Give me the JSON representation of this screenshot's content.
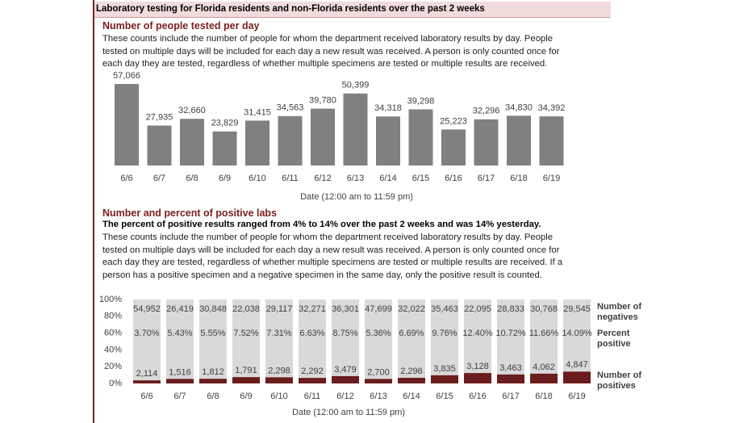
{
  "header": "Laboratory testing for Florida residents and non-Florida residents over the past 2 weeks",
  "chart_data": [
    {
      "type": "bar",
      "title": "Number of people tested per day",
      "subtitle": "These counts include the number of people for whom the department received laboratory results by day. People tested on multiple days will be included for each day a new result was received. A person is only counted once for each day they are tested, regardless of whether multiple specimens are tested or multiple results are received.",
      "xlabel": "Date (12:00 am to 11:59 pm)",
      "categories": [
        "6/6",
        "6/7",
        "6/8",
        "6/9",
        "6/10",
        "6/11",
        "6/12",
        "6/13",
        "6/14",
        "6/15",
        "6/16",
        "6/17",
        "6/18",
        "6/19"
      ],
      "values": [
        57066,
        27935,
        32660,
        23829,
        31415,
        34563,
        39780,
        50399,
        34318,
        39298,
        25223,
        32296,
        34830,
        34392
      ],
      "value_labels": [
        "57,066",
        "27,935",
        "32,660",
        "23,829",
        "31,415",
        "34,563",
        "39,780",
        "50,399",
        "34,318",
        "39,298",
        "25,223",
        "32,296",
        "34,830",
        "34,392"
      ],
      "color": "#808080"
    },
    {
      "type": "stacked_bar_percent",
      "title": "Number and percent of positive labs",
      "headline": "The percent of positive results ranged from 4% to 14% over the past 2 weeks and was 14% yesterday.",
      "subtitle": "These counts include the number of people for whom the department received laboratory results by day. People tested on multiple days will be included for each day a new result was received. A person is only counted once for each day they are tested, regardless of whether multiple specimens are tested or multiple results are received. If a person has a positive specimen and a negative specimen in the same day, only the positive result is counted.",
      "xlabel": "Date (12:00 am to 11:59 pm)",
      "categories": [
        "6/6",
        "6/7",
        "6/8",
        "6/9",
        "6/10",
        "6/11",
        "6/12",
        "6/13",
        "6/14",
        "6/15",
        "6/16",
        "6/17",
        "6/18",
        "6/19"
      ],
      "ylim": [
        0,
        100
      ],
      "yticks": [
        {
          "value": 0,
          "label": "0%"
        },
        {
          "value": 20,
          "label": "20%"
        },
        {
          "value": 40,
          "label": "40%"
        },
        {
          "value": 60,
          "label": "60%"
        },
        {
          "value": 80,
          "label": "80%"
        },
        {
          "value": 100,
          "label": "100%"
        }
      ],
      "series": [
        {
          "name": "Number of negatives",
          "color": "#d9d9d9",
          "values": [
            54952,
            26419,
            30848,
            22038,
            29117,
            32271,
            36301,
            47699,
            32022,
            35463,
            22095,
            28833,
            30768,
            29545
          ],
          "value_labels": [
            "54,952",
            "26,419",
            "30,848",
            "22,038",
            "29,117",
            "32,271",
            "36,301",
            "47,699",
            "32,022",
            "35,463",
            "22,095",
            "28,833",
            "30,768",
            "29,545"
          ]
        },
        {
          "name": "Number of positives",
          "color": "#6b1c1c",
          "values": [
            2114,
            1516,
            1812,
            1791,
            2298,
            2292,
            3479,
            2700,
            2296,
            3835,
            3128,
            3463,
            4062,
            4847
          ],
          "value_labels": [
            "2,114",
            "1,516",
            "1,812",
            "1,791",
            "2,298",
            "2,292",
            "3,479",
            "2,700",
            "2,296",
            "3,835",
            "3,128",
            "3,463",
            "4,062",
            "4,847"
          ]
        }
      ],
      "percent": {
        "name": "Percent positive",
        "color": "#8b2b2b",
        "values": [
          3.7,
          5.43,
          5.55,
          7.52,
          7.31,
          6.63,
          8.75,
          5.36,
          6.69,
          9.76,
          12.4,
          10.72,
          11.66,
          14.09
        ],
        "value_labels": [
          "3.70%",
          "5.43%",
          "5.55%",
          "7.52%",
          "7.31%",
          "6.63%",
          "8.75%",
          "5.36%",
          "6.69%",
          "9.76%",
          "12.40%",
          "10.72%",
          "11.66%",
          "14.09%"
        ]
      }
    }
  ]
}
